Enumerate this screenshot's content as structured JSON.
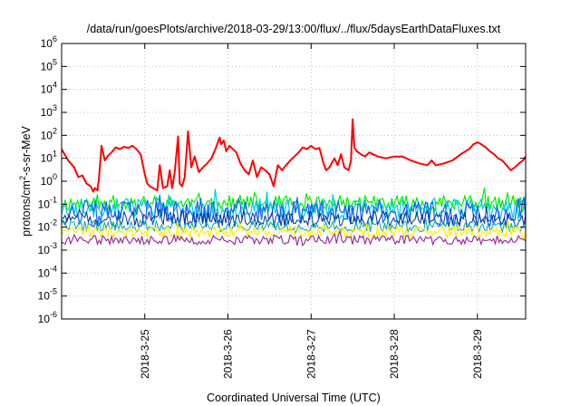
{
  "chart_data": {
    "type": "line",
    "title": "/data/run/goesPlots/archive/2018-03-29/13:00/flux/../flux/5daysEarthDataFluxes.txt",
    "xlabel": "Coordinated Universal Time (UTC)",
    "ylabel": {
      "base": "protons/cm",
      "sup": "2",
      "rest": "-s-sr-MeV"
    },
    "y_scale": "log",
    "ylim": [
      1e-06,
      1000000.0
    ],
    "y_ticks": [
      {
        "base": "10",
        "exp": "-6",
        "value": 1e-06
      },
      {
        "base": "10",
        "exp": "-5",
        "value": 1e-05
      },
      {
        "base": "10",
        "exp": "-4",
        "value": 0.0001
      },
      {
        "base": "10",
        "exp": "-3",
        "value": 0.001
      },
      {
        "base": "10",
        "exp": "-2",
        "value": 0.01
      },
      {
        "base": "10",
        "exp": "-1",
        "value": 0.1
      },
      {
        "base": "10",
        "exp": "0",
        "value": 1
      },
      {
        "base": "10",
        "exp": "1",
        "value": 10
      },
      {
        "base": "10",
        "exp": "2",
        "value": 100
      },
      {
        "base": "10",
        "exp": "3",
        "value": 1000
      },
      {
        "base": "10",
        "exp": "4",
        "value": 10000
      },
      {
        "base": "10",
        "exp": "5",
        "value": 100000
      },
      {
        "base": "10",
        "exp": "6",
        "value": 1000000
      }
    ],
    "x_range_days": [
      24.0,
      29.58
    ],
    "x_ticks": [
      {
        "label": "2018-3-25",
        "day": 25.0
      },
      {
        "label": "2018-3-26",
        "day": 26.0
      },
      {
        "label": "2018-3-27",
        "day": 27.0
      },
      {
        "label": "2018-3-28",
        "day": 28.0
      },
      {
        "label": "2018-3-29",
        "day": 29.0
      }
    ],
    "grid": true,
    "series": [
      {
        "color": "#ff0000",
        "width": 2,
        "x": [
          24.0,
          24.08,
          24.15,
          24.2,
          24.25,
          24.3,
          24.35,
          24.38,
          24.4,
          24.43,
          24.45,
          24.48,
          24.52,
          24.55,
          24.6,
          24.65,
          24.7,
          24.75,
          24.8,
          24.85,
          24.9,
          24.95,
          25.0,
          25.03,
          25.06,
          25.1,
          25.15,
          25.18,
          25.22,
          25.27,
          25.3,
          25.33,
          25.36,
          25.4,
          25.42,
          25.45,
          25.48,
          25.52,
          25.56,
          25.6,
          25.65,
          25.7,
          25.75,
          25.8,
          25.85,
          25.9,
          25.92,
          25.95,
          25.98,
          26.02,
          26.06,
          26.1,
          26.15,
          26.2,
          26.25,
          26.3,
          26.35,
          26.4,
          26.45,
          26.5,
          26.55,
          26.6,
          26.65,
          26.7,
          26.75,
          26.8,
          26.85,
          26.9,
          26.95,
          27.0,
          27.05,
          27.1,
          27.15,
          27.18,
          27.22,
          27.28,
          27.32,
          27.36,
          27.4,
          27.45,
          27.48,
          27.5,
          27.52,
          27.55,
          27.6,
          27.65,
          27.7,
          27.8,
          27.9,
          28.0,
          28.1,
          28.2,
          28.3,
          28.4,
          28.45,
          28.5,
          28.6,
          28.7,
          28.8,
          28.9,
          28.95,
          29.0,
          29.05,
          29.1,
          29.15,
          29.2,
          29.25,
          29.3,
          29.35,
          29.4,
          29.45,
          29.5,
          29.55,
          29.58
        ],
        "values": [
          25,
          8,
          4,
          1.5,
          1.8,
          0.8,
          0.6,
          0.35,
          0.5,
          0.4,
          1.5,
          35,
          8,
          12,
          18,
          30,
          25,
          32,
          28,
          35,
          25,
          15,
          2,
          0.8,
          0.6,
          0.5,
          0.4,
          5,
          0.5,
          0.6,
          3,
          0.5,
          2.5,
          90,
          0.8,
          0.6,
          1.5,
          150,
          4,
          12,
          2.5,
          4,
          6,
          10,
          25,
          80,
          40,
          60,
          20,
          35,
          25,
          18,
          6,
          3,
          2,
          8,
          1.5,
          4,
          3,
          2,
          0.6,
          5,
          3,
          5,
          8,
          12,
          18,
          30,
          25,
          35,
          25,
          28,
          6,
          3,
          4,
          10,
          5,
          15,
          4,
          3,
          8,
          500,
          30,
          20,
          15,
          12,
          18,
          12,
          10,
          12,
          12,
          8,
          6,
          5,
          8,
          5,
          6,
          8,
          15,
          25,
          40,
          50,
          40,
          30,
          20,
          15,
          10,
          8,
          5,
          3,
          4,
          6,
          8,
          12
        ]
      },
      {
        "color": "#00ee00",
        "base": 0.11,
        "amp": 0.35,
        "seed": 11,
        "width": 1.2
      },
      {
        "color": "#00ccdd",
        "base": 0.065,
        "amp": 0.45,
        "seed": 23,
        "width": 1.2
      },
      {
        "color": "#1060ff",
        "base": 0.04,
        "amp": 0.55,
        "seed": 37,
        "width": 1.2
      },
      {
        "color": "#003399",
        "base": 0.022,
        "amp": 0.35,
        "seed": 51,
        "width": 1.0
      },
      {
        "color": "#00aaaa",
        "base": 0.011,
        "amp": 0.25,
        "seed": 63,
        "width": 1.0
      },
      {
        "color": "#ffee00",
        "base": 0.006,
        "amp": 0.25,
        "seed": 77,
        "width": 1.2
      },
      {
        "color": "#993399",
        "base": 0.0028,
        "amp": 0.2,
        "seed": 91,
        "width": 1.2
      }
    ]
  }
}
